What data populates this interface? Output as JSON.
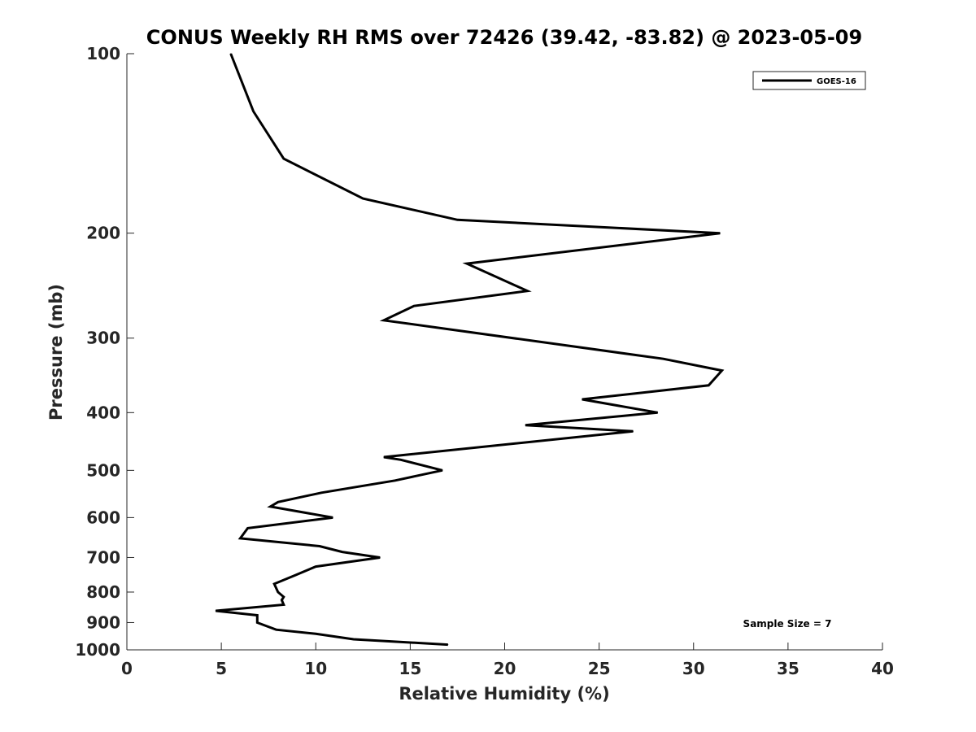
{
  "chart_data": {
    "type": "line",
    "title": "CONUS Weekly RH RMS over 72426 (39.42, -83.82) @ 2023-05-09",
    "xlabel": "Relative Humidity (%)",
    "ylabel": "Pressure (mb)",
    "xlim": [
      0,
      40
    ],
    "ylim": [
      100,
      1000
    ],
    "y_scale": "log",
    "y_reversed": true,
    "grid": false,
    "x_ticks": [
      0,
      5,
      10,
      15,
      20,
      25,
      30,
      35,
      40
    ],
    "y_ticks": [
      100,
      200,
      300,
      400,
      500,
      600,
      700,
      800,
      900,
      1000
    ],
    "legend": {
      "position": "top-right",
      "entries": [
        "GOES-16"
      ]
    },
    "annotation": "Sample Size = 7",
    "series": [
      {
        "name": "GOES-16",
        "color": "#000000",
        "points": [
          [
            5.5,
            100
          ],
          [
            6.7,
            125
          ],
          [
            8.3,
            150
          ],
          [
            12.5,
            175
          ],
          [
            17.5,
            190
          ],
          [
            31.4,
            200
          ],
          [
            18.0,
            225
          ],
          [
            21.2,
            250
          ],
          [
            15.2,
            265
          ],
          [
            13.6,
            280
          ],
          [
            28.4,
            325
          ],
          [
            31.5,
            340
          ],
          [
            30.8,
            360
          ],
          [
            24.1,
            380
          ],
          [
            28.1,
            400
          ],
          [
            21.1,
            420
          ],
          [
            26.8,
            430
          ],
          [
            13.6,
            475
          ],
          [
            14.5,
            480
          ],
          [
            16.7,
            500
          ],
          [
            14.2,
            520
          ],
          [
            10.3,
            545
          ],
          [
            8.0,
            565
          ],
          [
            7.6,
            575
          ],
          [
            10.9,
            600
          ],
          [
            6.4,
            625
          ],
          [
            6.0,
            650
          ],
          [
            10.2,
            670
          ],
          [
            11.4,
            685
          ],
          [
            13.4,
            700
          ],
          [
            10.0,
            725
          ],
          [
            8.9,
            750
          ],
          [
            7.8,
            775
          ],
          [
            8.0,
            800
          ],
          [
            8.3,
            815
          ],
          [
            8.2,
            825
          ],
          [
            8.3,
            840
          ],
          [
            4.7,
            860
          ],
          [
            6.9,
            875
          ],
          [
            6.9,
            900
          ],
          [
            7.9,
            925
          ],
          [
            10.0,
            940
          ],
          [
            12.0,
            960
          ],
          [
            17.0,
            980
          ]
        ]
      }
    ]
  }
}
